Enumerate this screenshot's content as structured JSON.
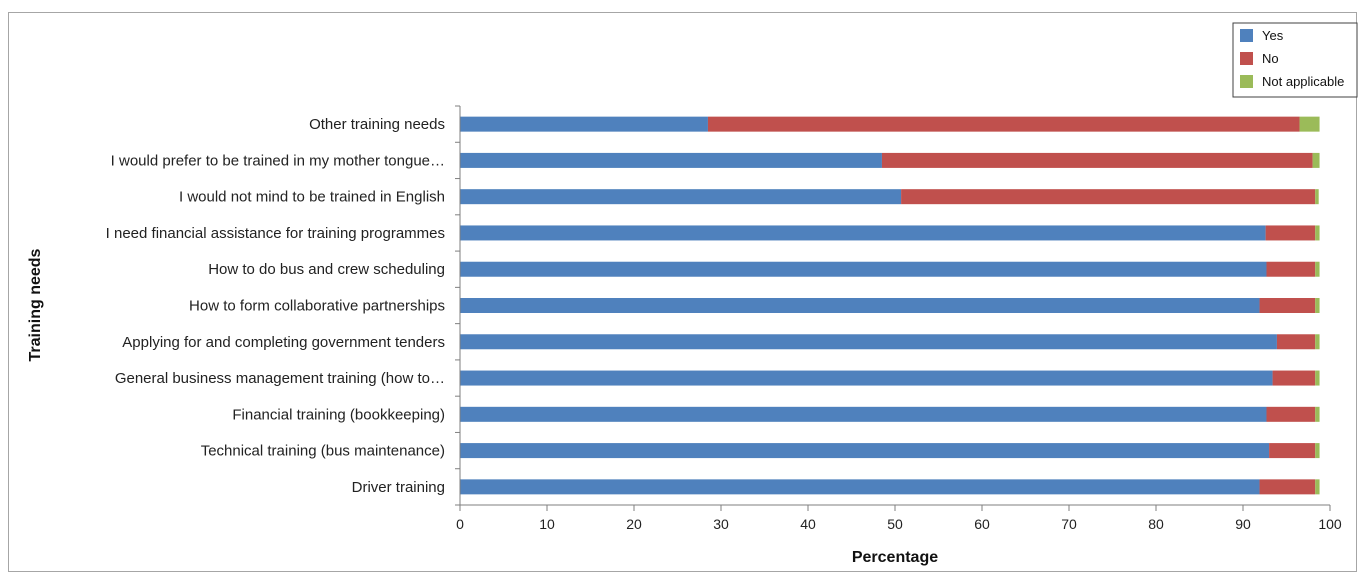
{
  "chart_data": {
    "type": "bar",
    "orientation": "horizontal",
    "stacked": true,
    "categories": [
      "Other training needs",
      "I would prefer to be trained in my mother tongue…",
      "I would not mind to be trained in English",
      "I need financial assistance for training programmes",
      "How to do bus and crew scheduling",
      "How to form collaborative partnerships",
      "Applying for and completing government tenders",
      "General business management training (how to…",
      "Financial training (bookkeeping)",
      "Technical training (bus maintenance)",
      "Driver training"
    ],
    "series": [
      {
        "name": "Yes",
        "color": "#4f81bd",
        "values": [
          28.5,
          48.5,
          50.7,
          92.6,
          92.7,
          91.9,
          93.9,
          93.4,
          92.7,
          93.0,
          91.9
        ]
      },
      {
        "name": "No",
        "color": "#c0504d",
        "values": [
          68.0,
          49.5,
          47.6,
          5.7,
          5.6,
          6.4,
          4.4,
          4.9,
          5.6,
          5.3,
          6.4
        ]
      },
      {
        "name": "Not applicable",
        "color": "#9bbb59",
        "values": [
          2.3,
          0.8,
          0.4,
          0.5,
          0.5,
          0.5,
          0.5,
          0.5,
          0.5,
          0.5,
          0.5
        ]
      }
    ],
    "xlabel": "Percentage",
    "ylabel": "Training needs",
    "xlim": [
      0,
      100
    ],
    "xticks": [
      0,
      10,
      20,
      30,
      40,
      50,
      60,
      70,
      80,
      90,
      100
    ],
    "grid": false,
    "legend_position": "top-right"
  }
}
